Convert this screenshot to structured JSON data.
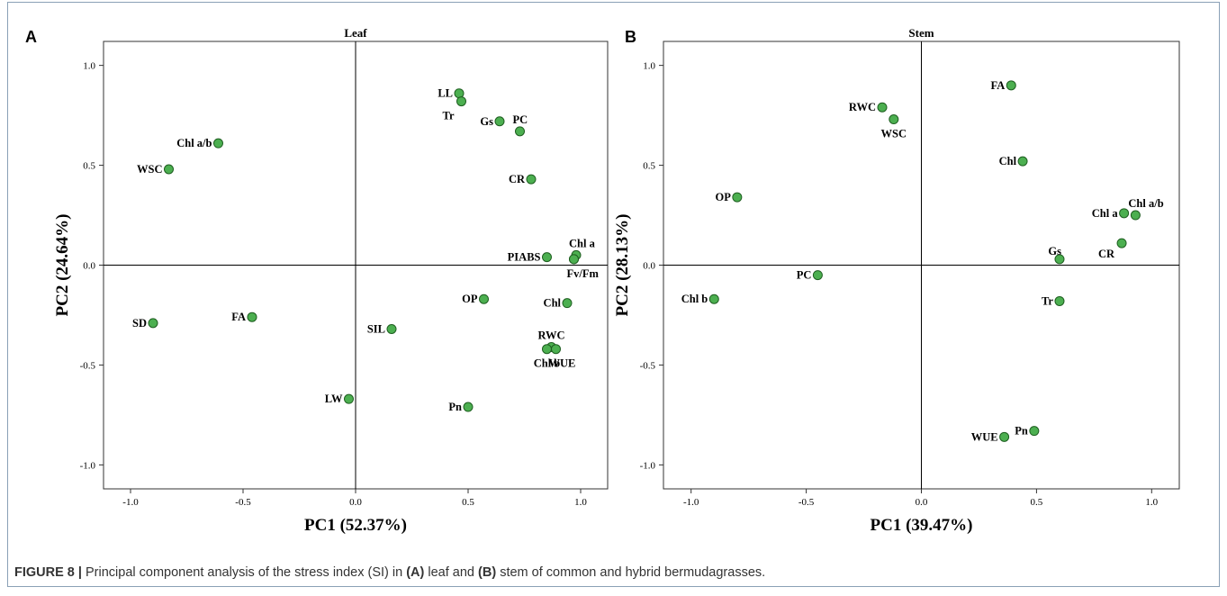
{
  "figure": {
    "caption_prefix": "FIGURE 8 |",
    "caption_parts": [
      {
        "text": " Principal component analysis of the stress index (SI) in ",
        "bold": false
      },
      {
        "text": "(A)",
        "bold": true
      },
      {
        "text": " leaf and ",
        "bold": false
      },
      {
        "text": "(B)",
        "bold": true
      },
      {
        "text": " stem of common and hybrid bermudagrasses.",
        "bold": false
      }
    ]
  },
  "colors": {
    "point_fill": "#4caf50",
    "point_stroke": "#1e5e20",
    "axis": "#000000"
  },
  "chart_data": [
    {
      "type": "scatter",
      "panel_label": "A",
      "title": "Leaf",
      "xlabel": "PC1 (52.37%)",
      "ylabel": "PC2 (24.64%)",
      "xlim": [
        -1.12,
        1.12
      ],
      "ylim": [
        -1.12,
        1.12
      ],
      "xticks": [
        -1.0,
        -0.5,
        0.0,
        0.5,
        1.0
      ],
      "xtick_labels": [
        "-1.0",
        "-0.5",
        "0.0",
        "0.5",
        "1.0"
      ],
      "yticks": [
        1.0,
        0.5,
        0.0,
        -0.5,
        -1.0
      ],
      "ytick_labels": [
        "1.0",
        "0.5",
        "0.0",
        "-0.5",
        "-1.0"
      ],
      "reference_lines": {
        "x": 0,
        "y": 0
      },
      "grid": false,
      "points": [
        {
          "label": "LL",
          "x": 0.46,
          "y": 0.86,
          "anchor": "end"
        },
        {
          "label": "Tr",
          "x": 0.47,
          "y": 0.82,
          "anchor": "below-left"
        },
        {
          "label": "Gs",
          "x": 0.64,
          "y": 0.72,
          "anchor": "end"
        },
        {
          "label": "PC",
          "x": 0.73,
          "y": 0.67,
          "anchor": "above-right"
        },
        {
          "label": "Chl a/b",
          "x": -0.61,
          "y": 0.61,
          "anchor": "end"
        },
        {
          "label": "WSC",
          "x": -0.83,
          "y": 0.48,
          "anchor": "end"
        },
        {
          "label": "CR",
          "x": 0.78,
          "y": 0.43,
          "anchor": "end"
        },
        {
          "label": "Chl a",
          "x": 0.98,
          "y": 0.05,
          "anchor": "above-right"
        },
        {
          "label": "",
          "x": 0.97,
          "y": 0.03,
          "anchor": "none"
        },
        {
          "label": "PIABS",
          "x": 0.85,
          "y": 0.04,
          "anchor": "end"
        },
        {
          "label": "Fv/Fm",
          "x": 0.97,
          "y": 0.03,
          "anchor": "below-right"
        },
        {
          "label": "OP",
          "x": 0.57,
          "y": -0.17,
          "anchor": "end"
        },
        {
          "label": "Chl",
          "x": 0.94,
          "y": -0.19,
          "anchor": "end"
        },
        {
          "label": "SD",
          "x": -0.9,
          "y": -0.29,
          "anchor": "end"
        },
        {
          "label": "FA",
          "x": -0.46,
          "y": -0.26,
          "anchor": "end"
        },
        {
          "label": "SIL",
          "x": 0.16,
          "y": -0.32,
          "anchor": "end"
        },
        {
          "label": "RWC",
          "x": 0.87,
          "y": -0.41,
          "anchor": "above"
        },
        {
          "label": "Chl b",
          "x": 0.85,
          "y": -0.42,
          "anchor": "below"
        },
        {
          "label": "WUE",
          "x": 0.89,
          "y": -0.42,
          "anchor": "below-right"
        },
        {
          "label": "LW",
          "x": -0.03,
          "y": -0.67,
          "anchor": "end"
        },
        {
          "label": "Pn",
          "x": 0.5,
          "y": -0.71,
          "anchor": "end"
        }
      ]
    },
    {
      "type": "scatter",
      "panel_label": "B",
      "title": "Stem",
      "xlabel": "PC1 (39.47%)",
      "ylabel": "PC2 (28.13%)",
      "xlim": [
        -1.12,
        1.12
      ],
      "ylim": [
        -1.12,
        1.12
      ],
      "xticks": [
        -1.0,
        -0.5,
        0.0,
        0.5,
        1.0
      ],
      "xtick_labels": [
        "-1.0",
        "-0.5",
        "0.0",
        "0.5",
        "1.0"
      ],
      "yticks": [
        1.0,
        0.5,
        0.0,
        -0.5,
        -1.0
      ],
      "ytick_labels": [
        "1.0",
        "0.5",
        "0.0",
        "-0.5",
        "-1.0"
      ],
      "reference_lines": {
        "x": 0,
        "y": 0
      },
      "grid": false,
      "points": [
        {
          "label": "FA",
          "x": 0.39,
          "y": 0.9,
          "anchor": "end"
        },
        {
          "label": "RWC",
          "x": -0.17,
          "y": 0.79,
          "anchor": "end"
        },
        {
          "label": "WSC",
          "x": -0.12,
          "y": 0.73,
          "anchor": "below"
        },
        {
          "label": "Chl",
          "x": 0.44,
          "y": 0.52,
          "anchor": "end"
        },
        {
          "label": "OP",
          "x": -0.8,
          "y": 0.34,
          "anchor": "end"
        },
        {
          "label": "Chl a",
          "x": 0.88,
          "y": 0.26,
          "anchor": "end"
        },
        {
          "label": "Chl a/b",
          "x": 0.93,
          "y": 0.25,
          "anchor": "above-right"
        },
        {
          "label": "CR",
          "x": 0.87,
          "y": 0.11,
          "anchor": "end-below"
        },
        {
          "label": "Gs",
          "x": 0.6,
          "y": 0.03,
          "anchor": "above-left"
        },
        {
          "label": "PC",
          "x": -0.45,
          "y": -0.05,
          "anchor": "end"
        },
        {
          "label": "Chl b",
          "x": -0.9,
          "y": -0.17,
          "anchor": "end"
        },
        {
          "label": "Tr",
          "x": 0.6,
          "y": -0.18,
          "anchor": "end"
        },
        {
          "label": "Pn",
          "x": 0.49,
          "y": -0.83,
          "anchor": "end"
        },
        {
          "label": "WUE",
          "x": 0.36,
          "y": -0.86,
          "anchor": "end"
        }
      ]
    }
  ]
}
